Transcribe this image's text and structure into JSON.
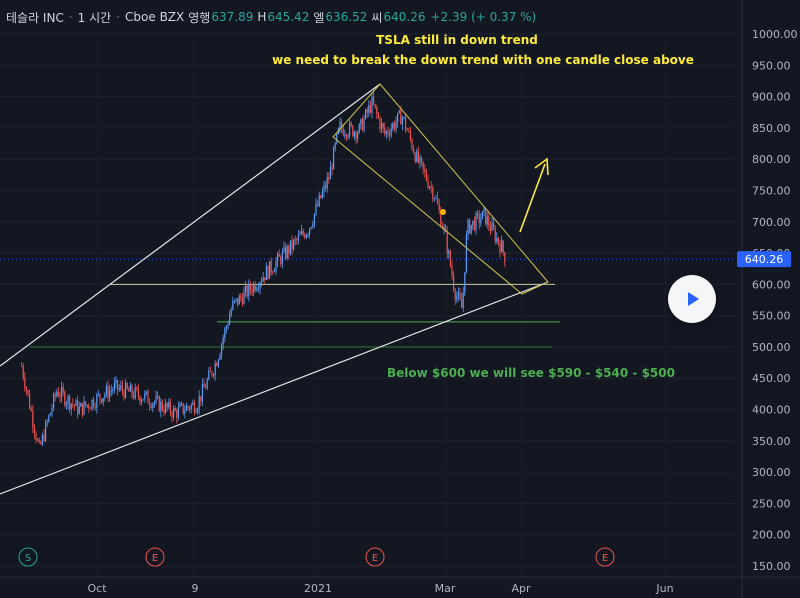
{
  "header": {
    "symbol": "테슬라 INC",
    "interval": "1 시간",
    "exchange": "Cboe BZX",
    "open_label": "영행",
    "open": "637.89",
    "high_label": "H",
    "high": "645.42",
    "low_label": "엘",
    "low": "636.52",
    "close_label": "씨",
    "close": "640.26",
    "change": "+2.39 (+ 0.37 %)"
  },
  "colors": {
    "background": "#131722",
    "up_candle": "#5b9cf6",
    "down_candle": "#ef5350",
    "text_annotation": "#ffeb3b",
    "green_annotation": "#4caf50",
    "price_label_bg": "#2962ff"
  },
  "current_price_label": "640.26",
  "play_button_icon": "play-icon",
  "chart_data": {
    "type": "candlestick",
    "timeframe": "1 hour",
    "x_tick_labels": [
      "Oct",
      "9",
      "2021",
      "Mar",
      "Apr",
      "Jun"
    ],
    "y_tick_labels": [
      "1000.00",
      "950.00",
      "900.00",
      "850.00",
      "800.00",
      "750.00",
      "700.00",
      "650.00",
      "600.00",
      "550.00",
      "500.00",
      "450.00",
      "400.00",
      "350.00",
      "300.00",
      "250.00",
      "200.00",
      "150.00"
    ],
    "ylim": [
      150,
      1000
    ],
    "current_price": 640.26,
    "price_path": [
      {
        "date": "2020-09-01",
        "price": 470
      },
      {
        "date": "2020-09-08",
        "price": 335
      },
      {
        "date": "2020-09-15",
        "price": 430
      },
      {
        "date": "2020-09-24",
        "price": 400
      },
      {
        "date": "2020-10-08",
        "price": 435
      },
      {
        "date": "2020-10-20",
        "price": 420
      },
      {
        "date": "2020-11-01",
        "price": 395
      },
      {
        "date": "2020-11-10",
        "price": 410
      },
      {
        "date": "2020-11-18",
        "price": 475
      },
      {
        "date": "2020-11-25",
        "price": 565
      },
      {
        "date": "2020-12-02",
        "price": 590
      },
      {
        "date": "2020-12-10",
        "price": 620
      },
      {
        "date": "2020-12-18",
        "price": 650
      },
      {
        "date": "2020-12-28",
        "price": 690
      },
      {
        "date": "2021-01-06",
        "price": 770
      },
      {
        "date": "2021-01-11",
        "price": 850
      },
      {
        "date": "2021-01-20",
        "price": 845
      },
      {
        "date": "2021-01-26",
        "price": 890
      },
      {
        "date": "2021-02-01",
        "price": 840
      },
      {
        "date": "2021-02-09",
        "price": 870
      },
      {
        "date": "2021-02-16",
        "price": 800
      },
      {
        "date": "2021-02-24",
        "price": 745
      },
      {
        "date": "2021-03-01",
        "price": 680
      },
      {
        "date": "2021-03-05",
        "price": 590
      },
      {
        "date": "2021-03-08",
        "price": 560
      },
      {
        "date": "2021-03-10",
        "price": 690
      },
      {
        "date": "2021-03-17",
        "price": 710
      },
      {
        "date": "2021-03-24",
        "price": 660
      },
      {
        "date": "2021-03-26",
        "price": 640
      }
    ],
    "horizontal_levels": [
      600,
      540,
      500
    ],
    "annotations": [
      "TSLA still in down trend",
      "we need to break the down trend with one candle close above",
      "Below $600 we will see $590 - $540 - $500"
    ],
    "event_markers": [
      "S",
      "E",
      "E",
      "E"
    ]
  }
}
